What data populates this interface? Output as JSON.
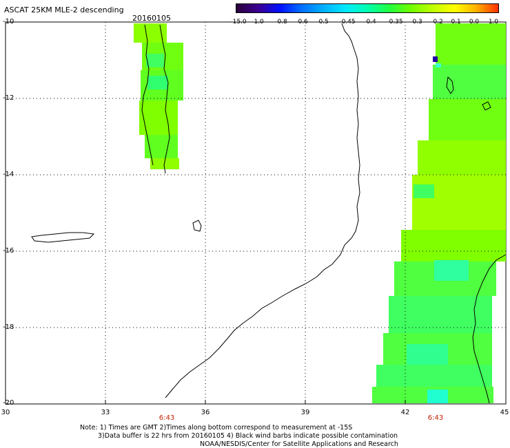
{
  "header": {
    "title": "ASCAT 25KM MLE-2 descending",
    "date": "20160105"
  },
  "colorbar": {
    "labels": [
      "-15.0",
      "-1.0",
      "-0.8",
      "-0.6",
      "-0.5",
      "-0.45",
      "-0.4",
      "-0.35",
      "-0.3",
      "-0.2",
      "-0.1",
      "0.0",
      "1.0"
    ],
    "colors": [
      "#2a003a",
      "#3a0090",
      "#0010ff",
      "#0070ff",
      "#00b0ff",
      "#00e8ff",
      "#00ffb0",
      "#20ff40",
      "#70ff00",
      "#c0ff00",
      "#ffff00",
      "#ffb000",
      "#ff3000"
    ]
  },
  "axes": {
    "y_ticks": [
      "-10",
      "-12",
      "-14",
      "-16",
      "-18",
      "-20"
    ],
    "x_ticks": [
      "30",
      "33",
      "36",
      "39",
      "42",
      "45"
    ]
  },
  "pass_times": [
    "6:43",
    "6:43"
  ],
  "notes": {
    "line1": "Note: 1) Times are GMT 2)Times along bottom correspond to measurement at -15S",
    "line2": "3)Data buffer is 22 hrs from 20160105 4) Black wind barbs indicate possible contamination",
    "line3": "NOAA/NESDIS/Center for Satellite Applications and Research"
  }
}
